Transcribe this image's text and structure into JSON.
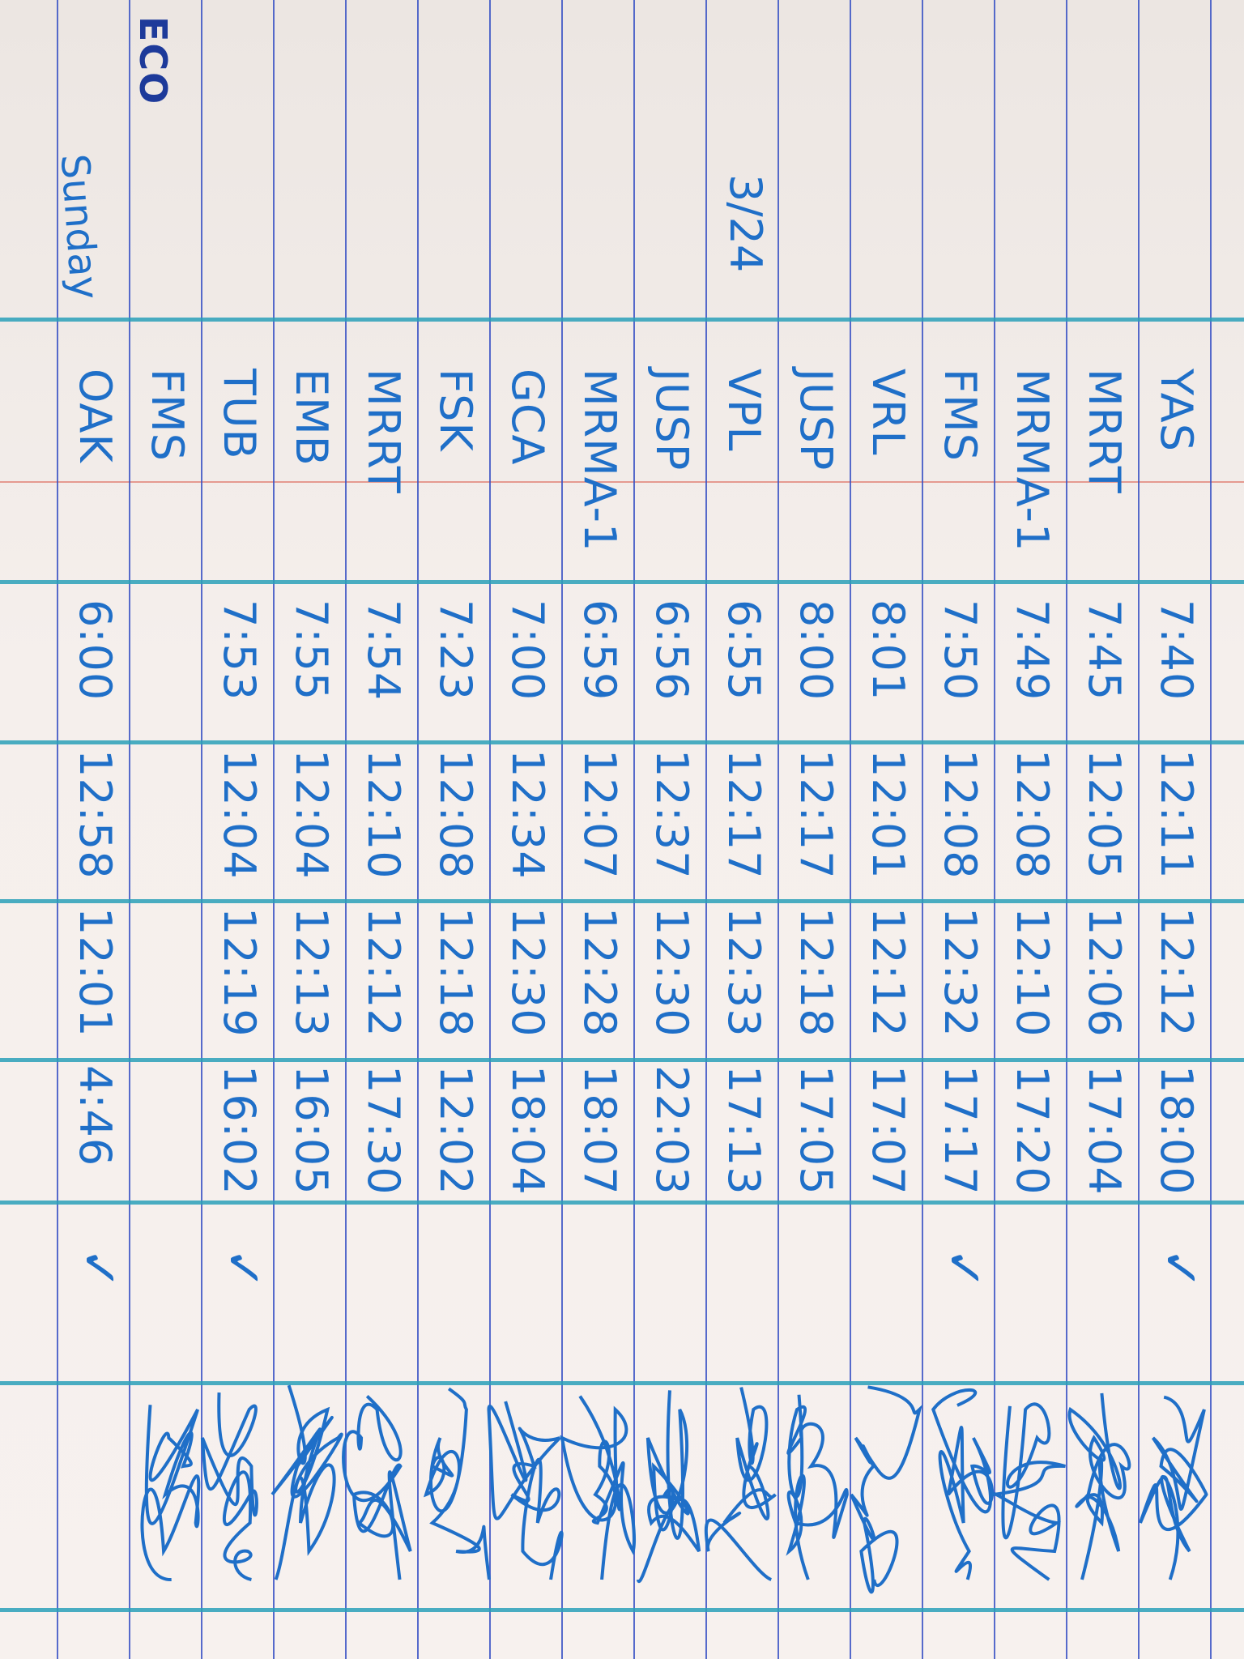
{
  "logo_text": "ECO",
  "date": "3/24",
  "sunday_label": "Sunday",
  "colors": {
    "ink": "#1f6fc8",
    "rule_line": "#3a52c4",
    "column_line": "#2aa0b8",
    "margin_line": "#e59a90",
    "paper": "#f5efec"
  },
  "rows": [
    {
      "name": "YAS",
      "time_in": "7:40",
      "lunch_out": "12:11",
      "lunch_in": "12:12",
      "time_out": "18:00",
      "check": "✓"
    },
    {
      "name": "MRRT",
      "time_in": "7:45",
      "lunch_out": "12:05",
      "lunch_in": "12:06",
      "time_out": "17:04",
      "check": ""
    },
    {
      "name": "MRMA-1",
      "time_in": "7:49",
      "lunch_out": "12:08",
      "lunch_in": "12:10",
      "time_out": "17:20",
      "check": ""
    },
    {
      "name": "FMS",
      "time_in": "7:50",
      "lunch_out": "12:08",
      "lunch_in": "12:32",
      "time_out": "17:17",
      "check": "✓"
    },
    {
      "name": "VRL",
      "time_in": "8:01",
      "lunch_out": "12:01",
      "lunch_in": "12:12",
      "time_out": "17:07",
      "check": ""
    },
    {
      "name": "JUSP",
      "time_in": "8:00",
      "lunch_out": "12:17",
      "lunch_in": "12:18",
      "time_out": "17:05",
      "check": ""
    },
    {
      "name": "VPL",
      "time_in": "6:55",
      "lunch_out": "12:17",
      "lunch_in": "12:33",
      "time_out": "17:13",
      "check": ""
    },
    {
      "name": "JUSP",
      "time_in": "6:56",
      "lunch_out": "12:37",
      "lunch_in": "12:30",
      "time_out": "22:03",
      "check": ""
    },
    {
      "name": "MRMA-1",
      "time_in": "6:59",
      "lunch_out": "12:07",
      "lunch_in": "12:28",
      "time_out": "18:07",
      "check": ""
    },
    {
      "name": "GCA",
      "time_in": "7:00",
      "lunch_out": "12:34",
      "lunch_in": "12:30",
      "time_out": "18:04",
      "check": ""
    },
    {
      "name": "FSK",
      "time_in": "7:23",
      "lunch_out": "12:08",
      "lunch_in": "12:18",
      "time_out": "12:02",
      "check": ""
    },
    {
      "name": "MRRT",
      "time_in": "7:54",
      "lunch_out": "12:10",
      "lunch_in": "12:12",
      "time_out": "17:30",
      "check": ""
    },
    {
      "name": "EMB",
      "time_in": "7:55",
      "lunch_out": "12:04",
      "lunch_in": "12:13",
      "time_out": "16:05",
      "check": ""
    },
    {
      "name": "TUB",
      "time_in": "7:53",
      "lunch_out": "12:04",
      "lunch_in": "12:19",
      "time_out": "16:02",
      "check": "✓"
    },
    {
      "name": "FMS",
      "time_in": "",
      "lunch_out": "",
      "lunch_in": "",
      "time_out": "",
      "check": ""
    },
    {
      "name": "OAK",
      "time_in": "6:00",
      "lunch_out": "12:58",
      "lunch_in": "12:01",
      "time_out": "4:46",
      "check": "✓"
    }
  ]
}
